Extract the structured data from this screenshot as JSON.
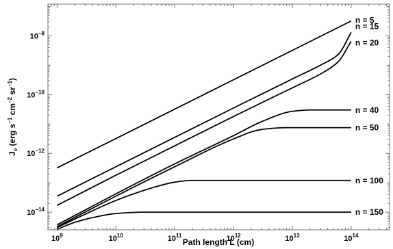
{
  "chart_data": {
    "type": "line",
    "xlabel": "Path length L (cm)",
    "ylabel": {
      "parts": [
        "J",
        "ν",
        " (erg s",
        "−1",
        " cm",
        "−2",
        " sr",
        "−1",
        ")"
      ]
    },
    "x_scale": "log",
    "y_scale": "log",
    "xlim": [
      700000000.0,
      450000000000000.0
    ],
    "ylim": [
      2.5e-15,
      1.2e-07
    ],
    "x_ticks": [
      {
        "base": "10",
        "exp": "9",
        "value": 1000000000.0
      },
      {
        "base": "10",
        "exp": "10",
        "value": 10000000000.0
      },
      {
        "base": "10",
        "exp": "11",
        "value": 100000000000.0
      },
      {
        "base": "10",
        "exp": "12",
        "value": 1000000000000.0
      },
      {
        "base": "10",
        "exp": "13",
        "value": 10000000000000.0
      },
      {
        "base": "10",
        "exp": "14",
        "value": 100000000000000.0
      }
    ],
    "y_ticks": [
      {
        "base": "10",
        "exp": "−8",
        "value": 1e-08
      },
      {
        "base": "10",
        "exp": "−10",
        "value": 1e-10
      },
      {
        "base": "10",
        "exp": "−12",
        "value": 1e-12
      },
      {
        "base": "10",
        "exp": "−14",
        "value": 1e-14
      }
    ],
    "grid": false,
    "series": [
      {
        "name": "n = 5",
        "x": [
          1000000000.0,
          10000000000.0,
          100000000000.0,
          1000000000000.0,
          10000000000000.0,
          100000000000000.0
        ],
        "y": [
          3.2e-13,
          3.2e-12,
          3.2e-11,
          3.2e-10,
          3.2e-09,
          3.2e-08
        ]
      },
      {
        "name": "n = 15",
        "x": [
          1000000000.0,
          10000000000.0,
          100000000000.0,
          1000000000000.0,
          10000000000000.0,
          30000000000000.0,
          60000000000000.0,
          100000000000000.0
        ],
        "y": [
          3.5e-14,
          3.5e-13,
          3.5e-12,
          3.5e-11,
          3.4e-10,
          1e-09,
          2.3e-09,
          1.3e-08
        ]
      },
      {
        "name": "n = 20",
        "x": [
          1000000000.0,
          10000000000.0,
          100000000000.0,
          1000000000000.0,
          10000000000000.0,
          30000000000000.0,
          60000000000000.0,
          100000000000000.0
        ],
        "y": [
          1.7e-14,
          1.8e-13,
          1.8e-12,
          1.8e-11,
          1.7e-10,
          5e-10,
          1.3e-09,
          6.5e-09
        ]
      },
      {
        "name": "n = 40",
        "x": [
          1000000000.0,
          10000000000.0,
          100000000000.0,
          1000000000000.0,
          3000000000000.0,
          10000000000000.0,
          20000000000000.0,
          100000000000000.0
        ],
        "y": [
          3.7e-15,
          4.2e-14,
          4.4e-13,
          4e-12,
          1.2e-11,
          2.7e-11,
          3e-11,
          3e-11
        ]
      },
      {
        "name": "n = 50",
        "x": [
          1000000000.0,
          10000000000.0,
          100000000000.0,
          1000000000000.0,
          3000000000000.0,
          8000000000000.0,
          10000000000000.0,
          100000000000000.0
        ],
        "y": [
          3.2e-15,
          3.5e-14,
          3.5e-13,
          3.1e-12,
          6.5e-12,
          7.5e-12,
          7.5e-12,
          7.5e-12
        ]
      },
      {
        "name": "n = 100",
        "x": [
          1000000000.0,
          3000000000.0,
          10000000000.0,
          50000000000.0,
          100000000000.0,
          200000000000.0,
          100000000000000.0
        ],
        "y": [
          3e-15,
          8.5e-15,
          2.5e-14,
          7.5e-14,
          1.05e-13,
          1.2e-13,
          1.2e-13
        ]
      },
      {
        "name": "n = 150",
        "x": [
          1000000000.0,
          2000000000.0,
          4000000000.0,
          10000000000.0,
          30000000000.0,
          100000000000000.0
        ],
        "y": [
          2.6e-15,
          4.5e-15,
          6.5e-15,
          9e-15,
          1e-14,
          1e-14
        ]
      }
    ]
  }
}
